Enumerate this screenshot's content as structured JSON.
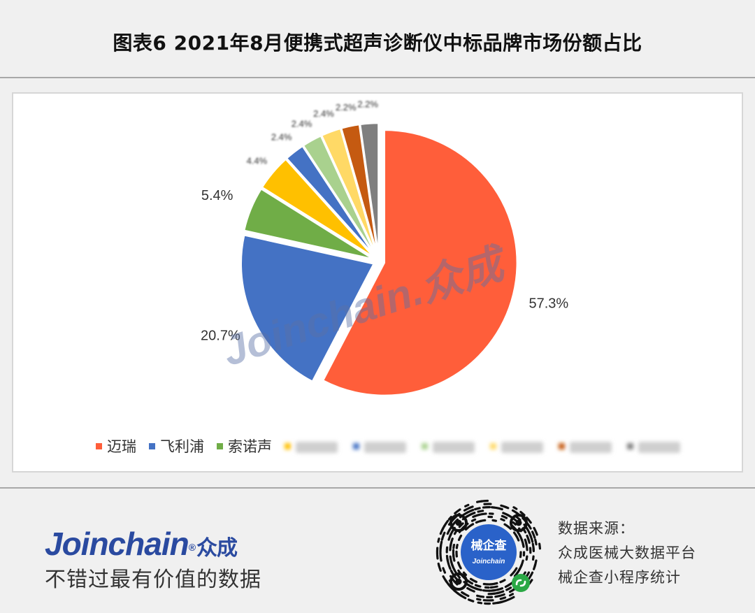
{
  "header": {
    "title": "图表6  2021年8月便携式超声诊断仪中标品牌市场份额占比"
  },
  "chart_data": {
    "type": "pie",
    "start_angle_deg": 0,
    "direction": "clockwise",
    "legend_position": "bottom",
    "watermark": "Joinchain.众成",
    "slices": [
      {
        "name": "迈瑞",
        "value": 57.3,
        "label": "57.3%",
        "color": "#ff5e3a",
        "blurred": false
      },
      {
        "name": "飞利浦",
        "value": 20.7,
        "label": "20.7%",
        "color": "#4472c4",
        "blurred": false
      },
      {
        "name": "索诺声",
        "value": 5.4,
        "label": "5.4%",
        "color": "#70ad47",
        "blurred": false
      },
      {
        "name": "",
        "value": 4.4,
        "label": "4.4%",
        "color": "#ffc000",
        "blurred": true
      },
      {
        "name": "",
        "value": 2.4,
        "label": "2.4%",
        "color": "#4472c4",
        "blurred": true
      },
      {
        "name": "",
        "value": 2.4,
        "label": "2.4%",
        "color": "#a9d18e",
        "blurred": true
      },
      {
        "name": "",
        "value": 2.4,
        "label": "2.4%",
        "color": "#ffd966",
        "blurred": true
      },
      {
        "name": "",
        "value": 2.2,
        "label": "2.2%",
        "color": "#c55a11",
        "blurred": true
      },
      {
        "name": "",
        "value": 2.2,
        "label": "2.2%",
        "color": "#7f7f7f",
        "blurred": true
      }
    ]
  },
  "footer": {
    "brand_name": "Joinchain",
    "brand_reg": "®",
    "brand_cn": "众成",
    "slogan": "不错过最有价值的数据",
    "qr_label": "械企查",
    "qr_sublabel": "Joinchain",
    "source_lines": [
      "数据来源：",
      "众成医械大数据平台",
      "械企查小程序统计"
    ]
  }
}
